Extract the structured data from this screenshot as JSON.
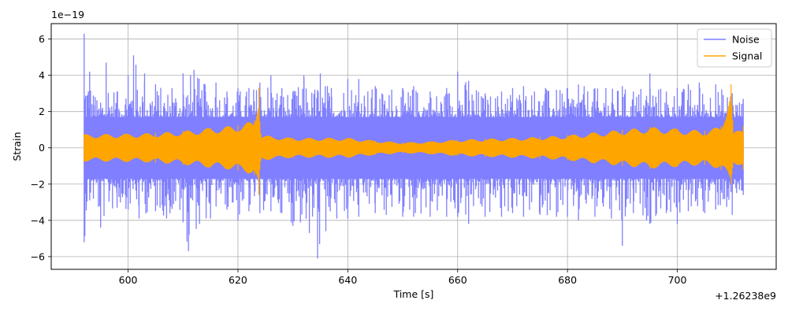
{
  "chart_data": {
    "type": "line",
    "xlabel": "Time [s]",
    "ylabel": "Strain",
    "y_scale_label": "1e−19",
    "x_offset_label": "+1.26238e9",
    "xlim": [
      586,
      718
    ],
    "ylim": [
      -6.7,
      6.85
    ],
    "x_ticks": [
      600,
      620,
      640,
      660,
      680,
      700
    ],
    "y_ticks": [
      -6,
      -4,
      -2,
      0,
      2,
      4,
      6
    ],
    "x_tick_labels": [
      "600",
      "620",
      "640",
      "660",
      "680",
      "700"
    ],
    "y_tick_labels": [
      "−6",
      "−4",
      "−2",
      "0",
      "2",
      "4",
      "6"
    ],
    "grid": true,
    "legend_position": "top-right",
    "series": [
      {
        "name": "Noise",
        "color": "#7f7fff",
        "x_range": [
          592,
          712
        ],
        "envelope_min": [
          [
            592,
            -5.2
          ],
          [
            593,
            -2.9
          ],
          [
            595,
            -4.4
          ],
          [
            598,
            -3.3
          ],
          [
            600,
            -3.4
          ],
          [
            602,
            -3.9
          ],
          [
            605,
            -3.5
          ],
          [
            607,
            -3.9
          ],
          [
            610,
            -4.1
          ],
          [
            611,
            -5.7
          ],
          [
            613,
            -4.2
          ],
          [
            615,
            -3.9
          ],
          [
            618,
            -3.4
          ],
          [
            620,
            -4.0
          ],
          [
            622,
            -3.5
          ],
          [
            624,
            -3.6
          ],
          [
            626,
            -3.5
          ],
          [
            628,
            -3.6
          ],
          [
            630,
            -4.3
          ],
          [
            633,
            -4.7
          ],
          [
            634.5,
            -6.1
          ],
          [
            636,
            -4.6
          ],
          [
            638,
            -3.9
          ],
          [
            640,
            -3.9
          ],
          [
            642,
            -3.8
          ],
          [
            645,
            -3.6
          ],
          [
            647,
            -3.7
          ],
          [
            650,
            -3.8
          ],
          [
            652,
            -3.8
          ],
          [
            655,
            -3.8
          ],
          [
            658,
            -3.8
          ],
          [
            660,
            -3.8
          ],
          [
            662,
            -4.2
          ],
          [
            665,
            -3.8
          ],
          [
            668,
            -3.8
          ],
          [
            670,
            -3.6
          ],
          [
            672,
            -3.8
          ],
          [
            675,
            -3.7
          ],
          [
            678,
            -3.8
          ],
          [
            680,
            -3.8
          ],
          [
            682,
            -4.0
          ],
          [
            685,
            -3.8
          ],
          [
            688,
            -3.9
          ],
          [
            690,
            -5.4
          ],
          [
            692,
            -3.6
          ],
          [
            695,
            -4.2
          ],
          [
            698,
            -3.6
          ],
          [
            700,
            -4.2
          ],
          [
            702,
            -3.5
          ],
          [
            705,
            -3.6
          ],
          [
            707,
            -3.4
          ],
          [
            710,
            -3.7
          ],
          [
            712,
            -2.6
          ]
        ],
        "envelope_max": [
          [
            592,
            6.3
          ],
          [
            593,
            4.2
          ],
          [
            594,
            2.8
          ],
          [
            595,
            2.5
          ],
          [
            596,
            4.7
          ],
          [
            598,
            3.1
          ],
          [
            600,
            4.0
          ],
          [
            601,
            5.1
          ],
          [
            603,
            4.1
          ],
          [
            605,
            3.5
          ],
          [
            608,
            3.3
          ],
          [
            610,
            4.1
          ],
          [
            612,
            4.3
          ],
          [
            614,
            3.5
          ],
          [
            616,
            3.6
          ],
          [
            618,
            3.1
          ],
          [
            620,
            3.3
          ],
          [
            622,
            3.3
          ],
          [
            624,
            3.6
          ],
          [
            626,
            4.0
          ],
          [
            628,
            3.3
          ],
          [
            630,
            3.1
          ],
          [
            632,
            4.0
          ],
          [
            634,
            3.2
          ],
          [
            635,
            4.1
          ],
          [
            637,
            3.3
          ],
          [
            640,
            3.8
          ],
          [
            642,
            3.8
          ],
          [
            645,
            3.4
          ],
          [
            648,
            3.2
          ],
          [
            650,
            3.3
          ],
          [
            652,
            3.4
          ],
          [
            655,
            3.1
          ],
          [
            658,
            3.3
          ],
          [
            660,
            4.2
          ],
          [
            662,
            3.7
          ],
          [
            665,
            3.0
          ],
          [
            668,
            3.1
          ],
          [
            670,
            3.3
          ],
          [
            672,
            3.4
          ],
          [
            674,
            3.1
          ],
          [
            676,
            3.3
          ],
          [
            678,
            3.2
          ],
          [
            680,
            3.3
          ],
          [
            682,
            3.5
          ],
          [
            685,
            3.3
          ],
          [
            687,
            3.3
          ],
          [
            690,
            3.4
          ],
          [
            692,
            3.1
          ],
          [
            695,
            4.1
          ],
          [
            698,
            3.1
          ],
          [
            700,
            3.3
          ],
          [
            702,
            3.5
          ],
          [
            704,
            3.6
          ],
          [
            707,
            3.5
          ],
          [
            710,
            3.0
          ],
          [
            712,
            2.7
          ]
        ]
      },
      {
        "name": "Signal",
        "color": "#ffa500",
        "x_range": [
          592,
          712
        ],
        "envelope_max": [
          [
            592,
            0.75
          ],
          [
            600,
            0.78
          ],
          [
            605,
            0.82
          ],
          [
            610,
            0.93
          ],
          [
            615,
            1.1
          ],
          [
            620,
            1.25
          ],
          [
            623,
            1.5
          ],
          [
            623.8,
            3.3
          ],
          [
            624.2,
            0.7
          ],
          [
            630,
            0.55
          ],
          [
            636,
            0.55
          ],
          [
            640,
            0.55
          ],
          [
            645,
            0.4
          ],
          [
            650,
            0.3
          ],
          [
            655,
            0.35
          ],
          [
            660,
            0.45
          ],
          [
            665,
            0.5
          ],
          [
            670,
            0.55
          ],
          [
            675,
            0.6
          ],
          [
            680,
            0.7
          ],
          [
            685,
            0.85
          ],
          [
            690,
            1.0
          ],
          [
            695,
            1.15
          ],
          [
            700,
            1.05
          ],
          [
            705,
            0.95
          ],
          [
            708,
            1.2
          ],
          [
            709.8,
            3.5
          ],
          [
            710.2,
            0.8
          ],
          [
            712,
            1.2
          ]
        ],
        "envelope_min": [
          [
            592,
            -0.75
          ],
          [
            600,
            -0.78
          ],
          [
            605,
            -0.82
          ],
          [
            610,
            -0.93
          ],
          [
            615,
            -1.1
          ],
          [
            620,
            -1.25
          ],
          [
            623,
            -1.5
          ],
          [
            623.8,
            -2.6
          ],
          [
            624.2,
            -0.7
          ],
          [
            630,
            -0.55
          ],
          [
            636,
            -0.55
          ],
          [
            640,
            -0.55
          ],
          [
            645,
            -0.4
          ],
          [
            650,
            -0.3
          ],
          [
            655,
            -0.35
          ],
          [
            660,
            -0.45
          ],
          [
            665,
            -0.5
          ],
          [
            670,
            -0.55
          ],
          [
            675,
            -0.6
          ],
          [
            680,
            -0.7
          ],
          [
            685,
            -0.85
          ],
          [
            690,
            -1.0
          ],
          [
            695,
            -1.15
          ],
          [
            700,
            -1.05
          ],
          [
            705,
            -0.95
          ],
          [
            708,
            -1.2
          ],
          [
            709.8,
            -2.0
          ],
          [
            710.2,
            -0.8
          ],
          [
            712,
            -1.2
          ]
        ]
      }
    ]
  }
}
